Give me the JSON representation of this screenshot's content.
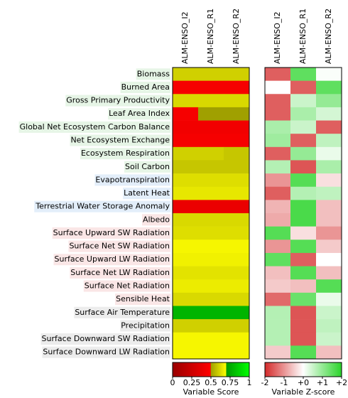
{
  "chart_data": [
    {
      "type": "heatmap",
      "rows": [
        "Biomass",
        "Burned Area",
        "Gross Primary Productivity",
        "Leaf Area Index",
        "Global Net Ecosystem Carbon Balance",
        "Net Ecosystem Exchange",
        "Ecosystem Respiration",
        "Soil Carbon",
        "Evapotranspiration",
        "Latent Heat",
        "Terrestrial Water Storage Anomaly",
        "Albedo",
        "Surface Upward SW Radiation",
        "Surface Net SW Radiation",
        "Surface Upward LW Radiation",
        "Surface Net LW Radiation",
        "Surface Net Radiation",
        "Sensible Heat",
        "Surface Air Temperature",
        "Precipitation",
        "Surface Downward SW Radiation",
        "Surface Downward LW Radiation"
      ],
      "row_colors": [
        "#e6f5e6",
        "#e6f5e6",
        "#e6f5e6",
        "#e6f5e6",
        "#e6f5e6",
        "#e6f5e6",
        "#e6f5e6",
        "#e6f5e6",
        "#e3eefa",
        "#e3eefa",
        "#e3eefa",
        "#fae6e6",
        "#fae6e6",
        "#fae6e6",
        "#fae6e6",
        "#fae6e6",
        "#fae6e6",
        "#fae6e6",
        "#ececec",
        "#ececec",
        "#ececec",
        "#ececec"
      ],
      "columns": [
        "ALM-ENSO_I2",
        "ALM-ENSO_R1",
        "ALM-ENSO_R2"
      ],
      "values": [
        [
          0.6,
          0.6,
          0.6
        ],
        [
          0.45,
          0.45,
          0.45
        ],
        [
          0.62,
          0.62,
          0.62
        ],
        [
          0.45,
          0.5,
          0.5
        ],
        [
          0.43,
          0.43,
          0.43
        ],
        [
          0.45,
          0.45,
          0.45
        ],
        [
          0.6,
          0.6,
          0.58
        ],
        [
          0.58,
          0.58,
          0.58
        ],
        [
          0.63,
          0.63,
          0.63
        ],
        [
          0.65,
          0.65,
          0.65
        ],
        [
          0.4,
          0.4,
          0.4
        ],
        [
          0.62,
          0.62,
          0.62
        ],
        [
          0.63,
          0.63,
          0.63
        ],
        [
          0.68,
          0.68,
          0.68
        ],
        [
          0.67,
          0.67,
          0.67
        ],
        [
          0.64,
          0.64,
          0.64
        ],
        [
          0.66,
          0.66,
          0.66
        ],
        [
          0.62,
          0.62,
          0.62
        ],
        [
          0.78,
          0.78,
          0.78
        ],
        [
          0.6,
          0.6,
          0.6
        ],
        [
          0.68,
          0.68,
          0.68
        ],
        [
          0.68,
          0.68,
          0.68
        ]
      ],
      "colormap": [
        [
          0,
          "#990000"
        ],
        [
          0.495,
          "#ff0000"
        ],
        [
          0.5,
          "#a0a000"
        ],
        [
          0.7,
          "#ffff00"
        ],
        [
          0.7,
          "#009900"
        ],
        [
          1,
          "#00ff00"
        ]
      ],
      "colorbar": {
        "label": "Variable Score",
        "lim": [
          0,
          1
        ],
        "ticks": [
          0,
          0.25,
          0.5,
          0.75,
          1
        ]
      }
    },
    {
      "type": "heatmap",
      "columns": [
        "ALM-ENSO_I2",
        "ALM-ENSO_R1",
        "ALM-ENSO_R2"
      ],
      "values": [
        [
          -1.5,
          1.5,
          0.05
        ],
        [
          0,
          -1.5,
          1.5
        ],
        [
          -1.5,
          0.5,
          1.0
        ],
        [
          -1.5,
          0.8,
          0.4
        ],
        [
          0.8,
          0.5,
          -1.5
        ],
        [
          0.9,
          -1.5,
          0.6
        ],
        [
          -1.5,
          1.0,
          0.2
        ],
        [
          0.7,
          -1.6,
          0.8
        ],
        [
          -1.0,
          1.6,
          -0.3
        ],
        [
          -1.5,
          0.7,
          0.6
        ],
        [
          -0.7,
          1.7,
          -0.6
        ],
        [
          -0.8,
          1.7,
          -0.6
        ],
        [
          1.6,
          -0.3,
          -1.0
        ],
        [
          -1.0,
          1.6,
          -0.5
        ],
        [
          1.5,
          -1.5,
          0.0
        ],
        [
          -0.6,
          1.6,
          -0.6
        ],
        [
          -0.5,
          -0.6,
          1.6
        ],
        [
          -1.4,
          1.4,
          0.2
        ],
        [
          0.7,
          -1.6,
          0.5
        ],
        [
          0.7,
          -1.6,
          0.6
        ],
        [
          0.7,
          -1.6,
          0.5
        ],
        [
          -0.5,
          1.6,
          -0.6
        ]
      ],
      "colormap": [
        [
          -2,
          "#d42a2a"
        ],
        [
          0,
          "#ffffff"
        ],
        [
          2,
          "#2ad42a"
        ]
      ],
      "colorbar": {
        "label": "Variable Z-score",
        "lim": [
          -2,
          2
        ],
        "ticks": [
          -2,
          -1,
          {
            "value": 0,
            "label": "+0"
          },
          {
            "value": 1,
            "label": "+1"
          },
          {
            "value": 2,
            "label": "+2"
          }
        ]
      }
    }
  ]
}
